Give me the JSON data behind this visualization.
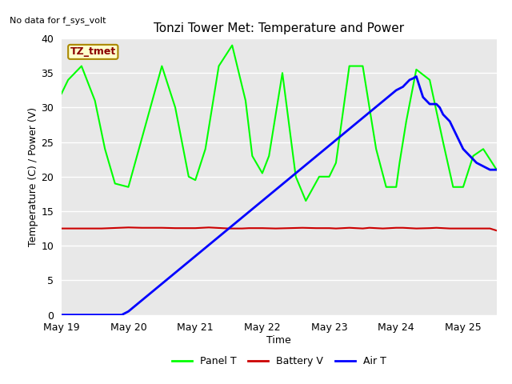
{
  "title": "Tonzi Tower Met: Temperature and Power",
  "no_data_text": "No data for f_sys_volt",
  "tz_label": "TZ_tmet",
  "xlabel": "Time",
  "ylabel": "Temperature (C) / Power (V)",
  "ylim": [
    0,
    40
  ],
  "xlim": [
    0,
    6.5
  ],
  "background_color": "#e8e8e8",
  "fig_facecolor": "#ffffff",
  "x_ticks": [
    0,
    1,
    2,
    3,
    4,
    5,
    6
  ],
  "x_tick_labels": [
    "May 19",
    "May 20",
    "May 21",
    "May 22",
    "May 23",
    "May 24",
    "May 25"
  ],
  "panel_T_x": [
    0,
    0.1,
    0.3,
    0.5,
    0.65,
    0.8,
    1.0,
    1.1,
    1.3,
    1.5,
    1.7,
    1.9,
    2.0,
    2.15,
    2.35,
    2.55,
    2.75,
    2.85,
    3.0,
    3.1,
    3.3,
    3.5,
    3.65,
    3.85,
    4.0,
    4.1,
    4.3,
    4.5,
    4.7,
    4.85,
    5.0,
    5.05,
    5.15,
    5.3,
    5.5,
    5.7,
    5.85,
    6.0,
    6.15,
    6.3,
    6.5
  ],
  "panel_T_y": [
    32,
    34,
    36,
    31,
    24,
    19,
    18.5,
    22,
    29,
    36,
    30,
    20,
    19.5,
    24,
    36,
    39,
    31,
    23,
    20.5,
    23,
    35,
    20,
    16.5,
    20,
    20,
    22,
    36,
    36,
    24,
    18.5,
    18.5,
    22,
    28,
    35.5,
    34,
    25,
    18.5,
    18.5,
    23,
    24,
    21
  ],
  "panel_color": "#00ff00",
  "battery_V_x": [
    0,
    0.3,
    0.6,
    1.0,
    1.2,
    1.5,
    1.7,
    2.0,
    2.1,
    2.2,
    2.3,
    2.5,
    2.7,
    2.8,
    3.0,
    3.2,
    3.4,
    3.6,
    3.8,
    4.0,
    4.1,
    4.2,
    4.3,
    4.5,
    4.6,
    4.7,
    4.8,
    5.0,
    5.1,
    5.2,
    5.3,
    5.5,
    5.6,
    5.7,
    5.8,
    6.0,
    6.1,
    6.2,
    6.3,
    6.4,
    6.5
  ],
  "battery_V_y": [
    12.5,
    12.5,
    12.5,
    12.65,
    12.6,
    12.6,
    12.55,
    12.55,
    12.6,
    12.65,
    12.6,
    12.5,
    12.5,
    12.55,
    12.55,
    12.5,
    12.55,
    12.6,
    12.55,
    12.55,
    12.5,
    12.55,
    12.6,
    12.5,
    12.6,
    12.55,
    12.5,
    12.6,
    12.6,
    12.55,
    12.5,
    12.55,
    12.6,
    12.55,
    12.5,
    12.5,
    12.5,
    12.5,
    12.5,
    12.5,
    12.2
  ],
  "battery_color": "#cc0000",
  "air_T_x": [
    0,
    0.9,
    1.0,
    1.5,
    2.0,
    2.5,
    3.0,
    3.5,
    4.0,
    4.5,
    5.0,
    5.1,
    5.15,
    5.2,
    5.25,
    5.3,
    5.4,
    5.5,
    5.6,
    5.65,
    5.7,
    5.8,
    5.9,
    6.0,
    6.1,
    6.2,
    6.3,
    6.4,
    6.5
  ],
  "air_T_y": [
    0,
    0,
    0.5,
    4.5,
    8.5,
    12.5,
    16.5,
    20.5,
    24.5,
    28.5,
    32.5,
    33,
    33.5,
    34,
    34.2,
    34.5,
    31.5,
    30.5,
    30.5,
    30,
    29,
    28,
    26,
    24,
    23,
    22,
    21.5,
    21,
    21
  ],
  "air_color": "#0000ff",
  "legend_items": [
    "Panel T",
    "Battery V",
    "Air T"
  ],
  "legend_colors": [
    "#00ff00",
    "#cc0000",
    "#0000ff"
  ]
}
